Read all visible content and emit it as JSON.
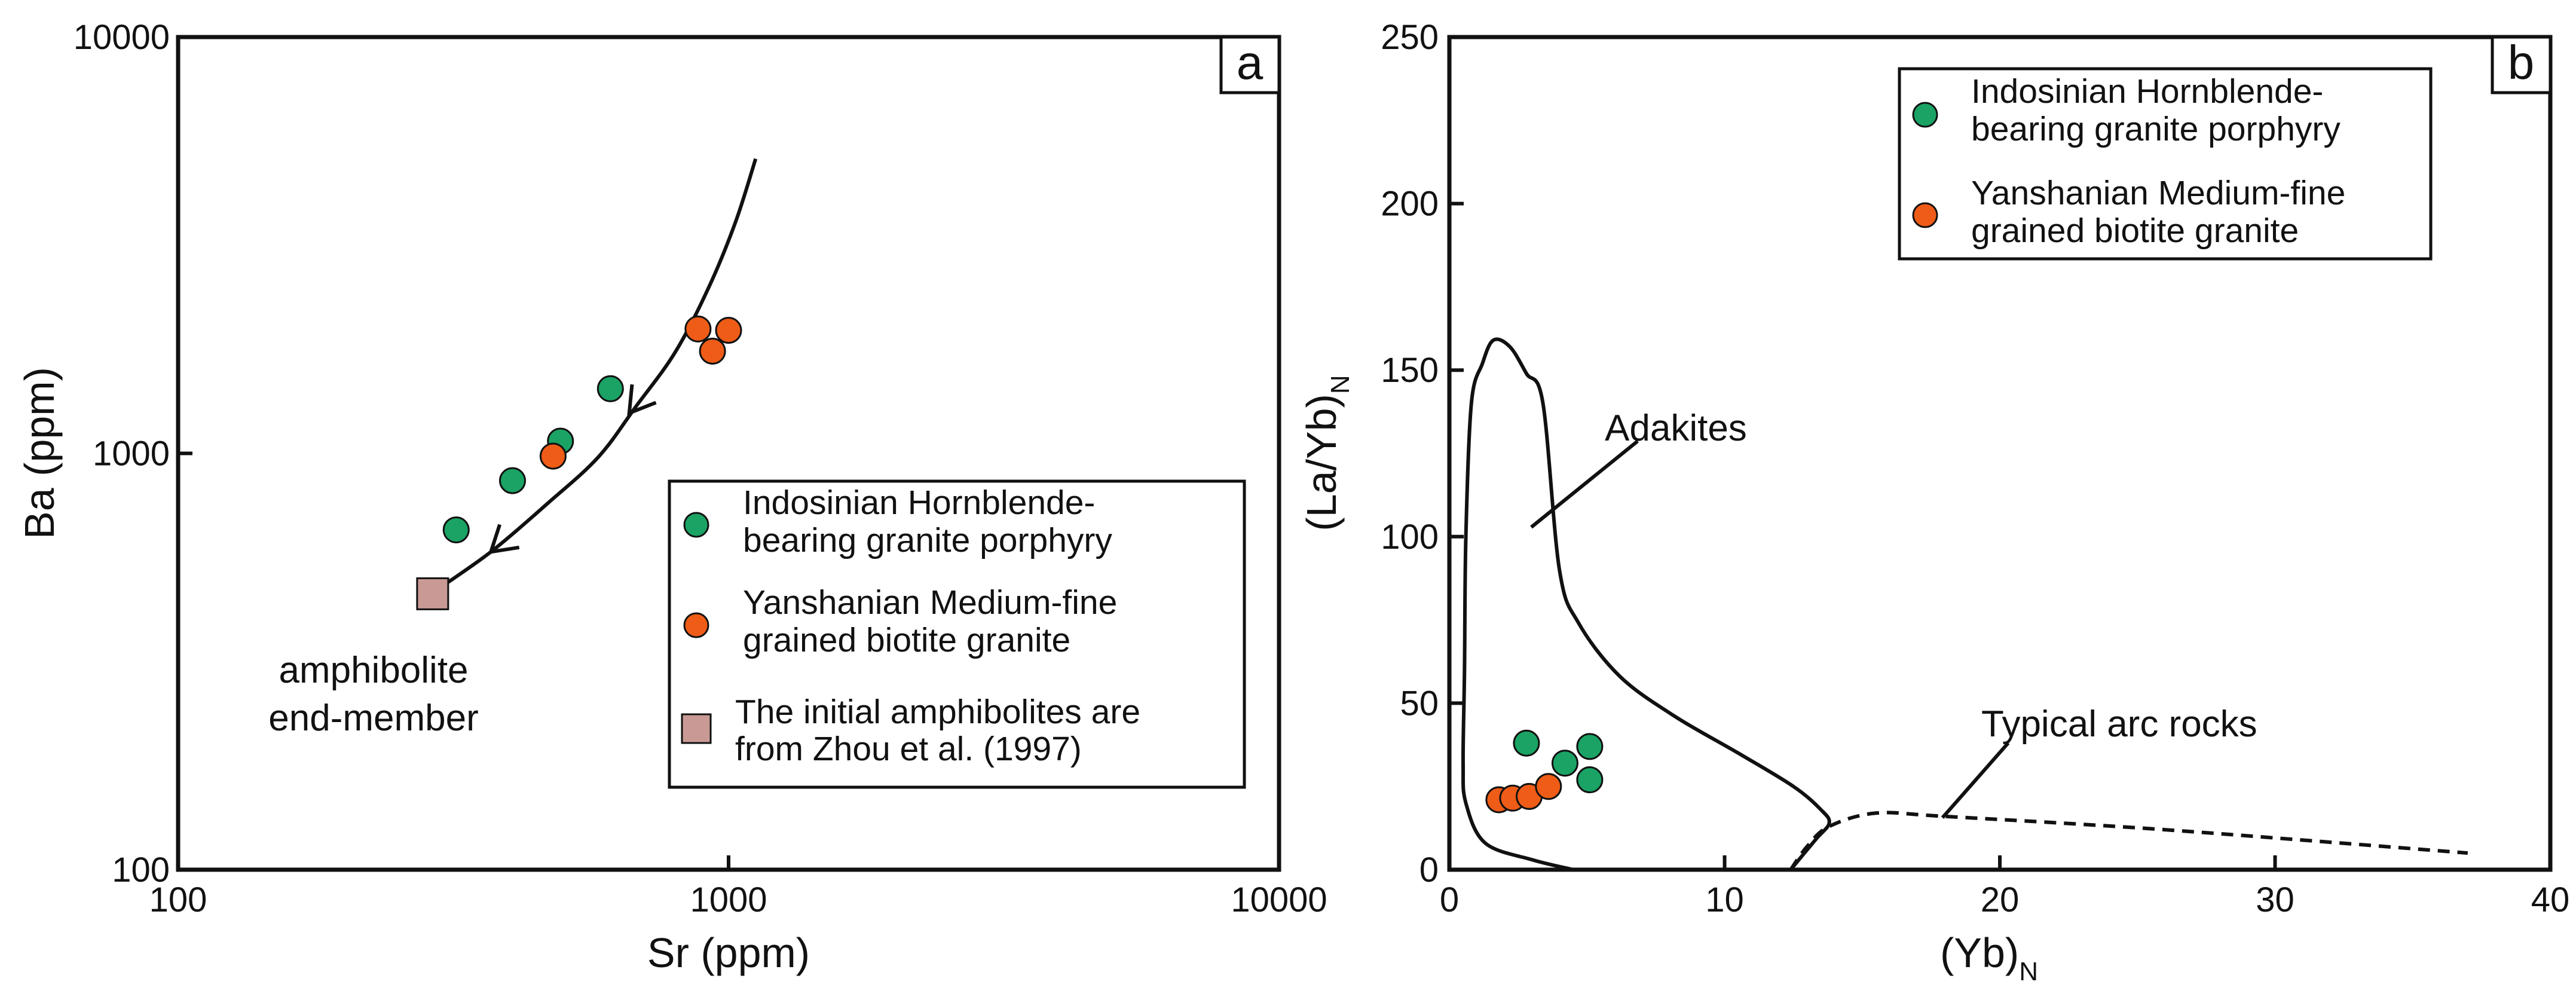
{
  "chart_data": [
    {
      "panel_label": "a",
      "type": "scatter",
      "x_scale": "log",
      "y_scale": "log",
      "xlim": [
        100,
        10000
      ],
      "ylim": [
        100,
        10000
      ],
      "xlabel": "Sr (ppm)",
      "ylabel": "Ba (ppm)",
      "x_ticks": [
        "100",
        "1000",
        "10000"
      ],
      "y_ticks": [
        "100",
        "1000",
        "10000"
      ],
      "series": [
        {
          "name": "Indosinian Hornblende-bearing granite porphyry",
          "legend_lines": [
            "Indosinian Hornblende-",
            "bearing granite porphyry"
          ],
          "color": "#1aa364",
          "marker": "circle",
          "points": [
            {
              "x": 320,
              "y": 655
            },
            {
              "x": 405,
              "y": 860
            },
            {
              "x": 495,
              "y": 1070
            },
            {
              "x": 610,
              "y": 1430
            }
          ]
        },
        {
          "name": "Yanshanian Medium-fine grained biotite granite",
          "legend_lines": [
            "Yanshanian Medium-fine",
            "grained biotite granite"
          ],
          "color": "#ee5c17",
          "marker": "circle",
          "points": [
            {
              "x": 480,
              "y": 985
            },
            {
              "x": 880,
              "y": 1990
            },
            {
              "x": 935,
              "y": 1760
            },
            {
              "x": 1000,
              "y": 1975
            }
          ]
        },
        {
          "name": "The initial amphibolites are from Zhou et al. (1997)",
          "legend_lines": [
            "The initial amphibolites are",
            "from Zhou et al. (1997)"
          ],
          "color": "#c99a95",
          "marker": "square",
          "points": [
            {
              "x": 290,
              "y": 460
            }
          ]
        }
      ],
      "trend_curve": [
        [
          295,
          470
        ],
        [
          370,
          580
        ],
        [
          470,
          760
        ],
        [
          580,
          980
        ],
        [
          680,
          1300
        ],
        [
          800,
          1750
        ],
        [
          920,
          2500
        ],
        [
          1030,
          3600
        ],
        [
          1120,
          5100
        ]
      ],
      "annotations": [
        "amphibolite",
        "end-member"
      ],
      "legend_position": "bottom-right"
    },
    {
      "panel_label": "b",
      "type": "scatter",
      "x_scale": "linear",
      "y_scale": "linear",
      "xlim": [
        0,
        40
      ],
      "ylim": [
        0,
        250
      ],
      "xlabel_main": "(Yb)",
      "xlabel_sub": "N",
      "ylabel_main": "(La/Yb)",
      "ylabel_sub": "N",
      "x_ticks": [
        "0",
        "10",
        "20",
        "30",
        "40"
      ],
      "y_ticks": [
        "0",
        "50",
        "100",
        "150",
        "200",
        "250"
      ],
      "series": [
        {
          "name": "Indosinian Hornblende-bearing granite porphyry",
          "legend_lines": [
            "Indosinian Hornblende-",
            "bearing granite porphyry"
          ],
          "color": "#1aa364",
          "marker": "circle",
          "points": [
            {
              "x": 2.8,
              "y": 38
            },
            {
              "x": 4.2,
              "y": 32
            },
            {
              "x": 5.1,
              "y": 37
            },
            {
              "x": 5.1,
              "y": 27
            }
          ]
        },
        {
          "name": "Yanshanian Medium-fine grained biotite granite",
          "legend_lines": [
            "Yanshanian Medium-fine",
            "grained biotite granite"
          ],
          "color": "#ee5c17",
          "marker": "circle",
          "points": [
            {
              "x": 1.8,
              "y": 21
            },
            {
              "x": 2.3,
              "y": 21.5
            },
            {
              "x": 2.9,
              "y": 22
            },
            {
              "x": 3.6,
              "y": 25
            }
          ]
        }
      ],
      "adakite_field": [
        [
          12.4,
          0
        ],
        [
          13.3,
          9
        ],
        [
          13.8,
          14
        ],
        [
          13.5,
          18
        ],
        [
          12.5,
          25
        ],
        [
          10.5,
          35
        ],
        [
          8.2,
          46
        ],
        [
          6.2,
          58
        ],
        [
          4.7,
          74
        ],
        [
          4.0,
          90
        ],
        [
          3.4,
          140
        ],
        [
          2.8,
          149
        ],
        [
          2.2,
          157
        ],
        [
          1.6,
          159
        ],
        [
          1.2,
          152
        ],
        [
          0.8,
          140
        ],
        [
          0.6,
          100
        ],
        [
          0.55,
          60
        ],
        [
          0.5,
          32
        ],
        [
          0.6,
          20
        ],
        [
          1.3,
          8
        ],
        [
          3,
          3
        ],
        [
          4.5,
          0
        ]
      ],
      "arc_field_dashed": [
        [
          12.4,
          0
        ],
        [
          13.0,
          7
        ],
        [
          13.8,
          13
        ],
        [
          15.5,
          17
        ],
        [
          18,
          16
        ],
        [
          26,
          12
        ],
        [
          37,
          5
        ]
      ],
      "annotations": [
        "Adakites",
        "Typical arc rocks"
      ],
      "legend_position": "top-right"
    }
  ]
}
